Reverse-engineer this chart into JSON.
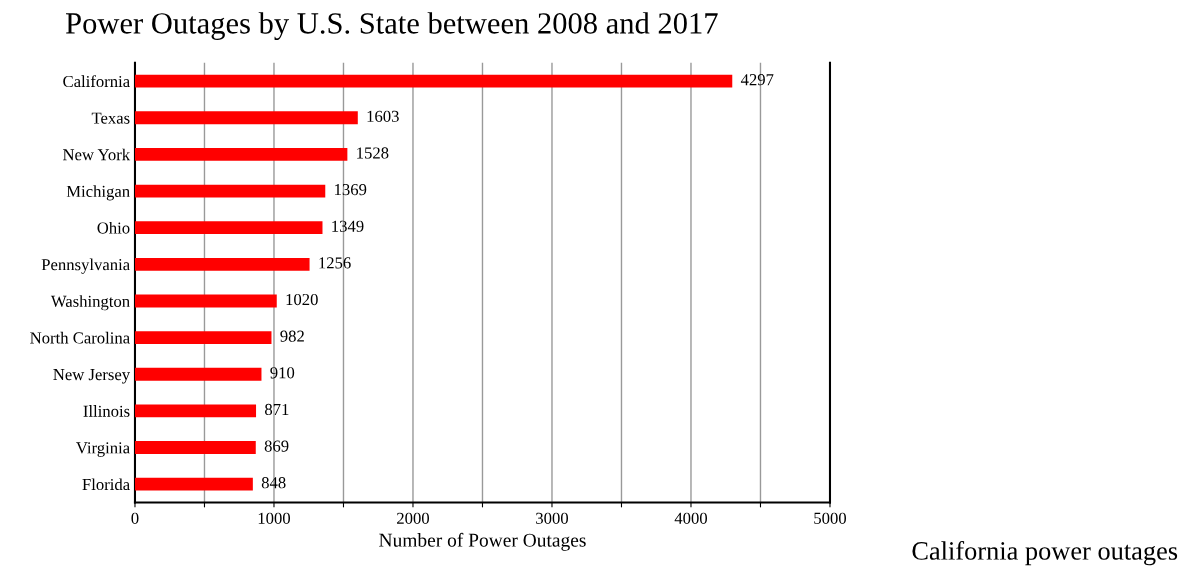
{
  "chart_data": {
    "type": "bar",
    "orientation": "horizontal",
    "title": "Power Outages by U.S. State between 2008 and 2017",
    "xlabel": "Number of Power Outages",
    "categories": [
      "California",
      "Texas",
      "New York",
      "Michigan",
      "Ohio",
      "Pennsylvania",
      "Washington",
      "North Carolina",
      "New Jersey",
      "Illinois",
      "Virginia",
      "Florida"
    ],
    "values": [
      4297,
      1603,
      1528,
      1369,
      1349,
      1256,
      1020,
      982,
      910,
      871,
      869,
      848
    ],
    "color": "#ff0000",
    "data_labels": true,
    "xlim": [
      0,
      5000
    ],
    "xticks": [
      0,
      {
        "value": 500,
        "label": null
      },
      1000,
      {
        "value": 1500,
        "label": null
      },
      2000,
      {
        "value": 2500,
        "label": null
      },
      3000,
      {
        "value": 3500,
        "label": null
      },
      4000,
      {
        "value": 4500,
        "label": null
      },
      5000
    ],
    "grid": "x",
    "legend": false,
    "annotations": [
      "California power outages"
    ]
  }
}
